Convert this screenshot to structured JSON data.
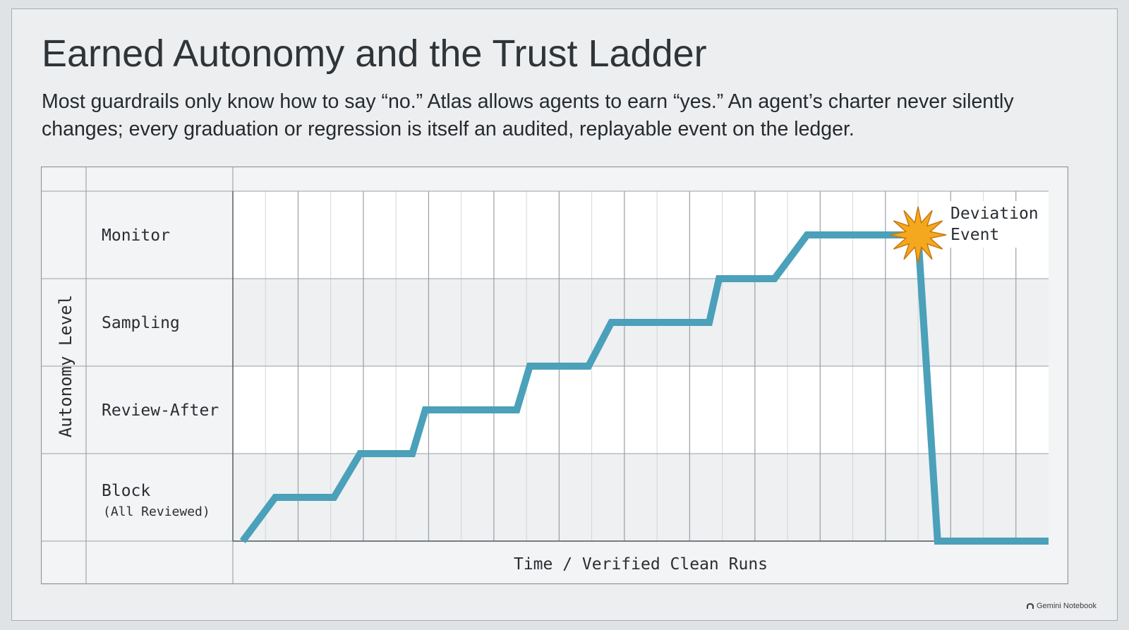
{
  "slide": {
    "title": "Earned Autonomy and the Trust Ladder",
    "subtitle": "Most guardrails only know how to say “no.” Atlas allows agents to earn “yes.” An agent’s charter never silently changes; every graduation or regression is itself an audited, replayable event on the ledger."
  },
  "chart_data": {
    "type": "line",
    "title": "",
    "xlabel": "Time / Verified Clean Runs",
    "ylabel": "Autonomy Level",
    "xlim": [
      0,
      25
    ],
    "ylim": [
      0,
      4
    ],
    "y_categories": [
      {
        "label": "Block",
        "sublabel": "(All Reviewed)"
      },
      {
        "label": "Review-After",
        "sublabel": ""
      },
      {
        "label": "Sampling",
        "sublabel": ""
      },
      {
        "label": "Monitor",
        "sublabel": ""
      }
    ],
    "grid": true,
    "series": [
      {
        "color": "#4ba0ba",
        "points": [
          [
            0.3,
            0
          ],
          [
            1.3,
            0.5
          ],
          [
            3.1,
            0.5
          ],
          [
            3.9,
            1.0
          ],
          [
            5.5,
            1.0
          ],
          [
            5.9,
            1.5
          ],
          [
            8.7,
            1.5
          ],
          [
            9.1,
            2.0
          ],
          [
            10.9,
            2.0
          ],
          [
            11.6,
            2.5
          ],
          [
            14.6,
            2.5
          ],
          [
            14.9,
            3.0
          ],
          [
            16.6,
            3.0
          ],
          [
            17.6,
            3.5
          ],
          [
            21.0,
            3.5
          ],
          [
            21.6,
            0
          ],
          [
            25.0,
            0
          ]
        ]
      }
    ],
    "annotations": [
      {
        "text_line1": "Deviation",
        "text_line2": "Event",
        "x": 21.0,
        "y": 3.5,
        "marker": "starburst-icon",
        "color": "#f4a81e"
      }
    ]
  },
  "watermark": {
    "text": "Gemini Notebook"
  }
}
